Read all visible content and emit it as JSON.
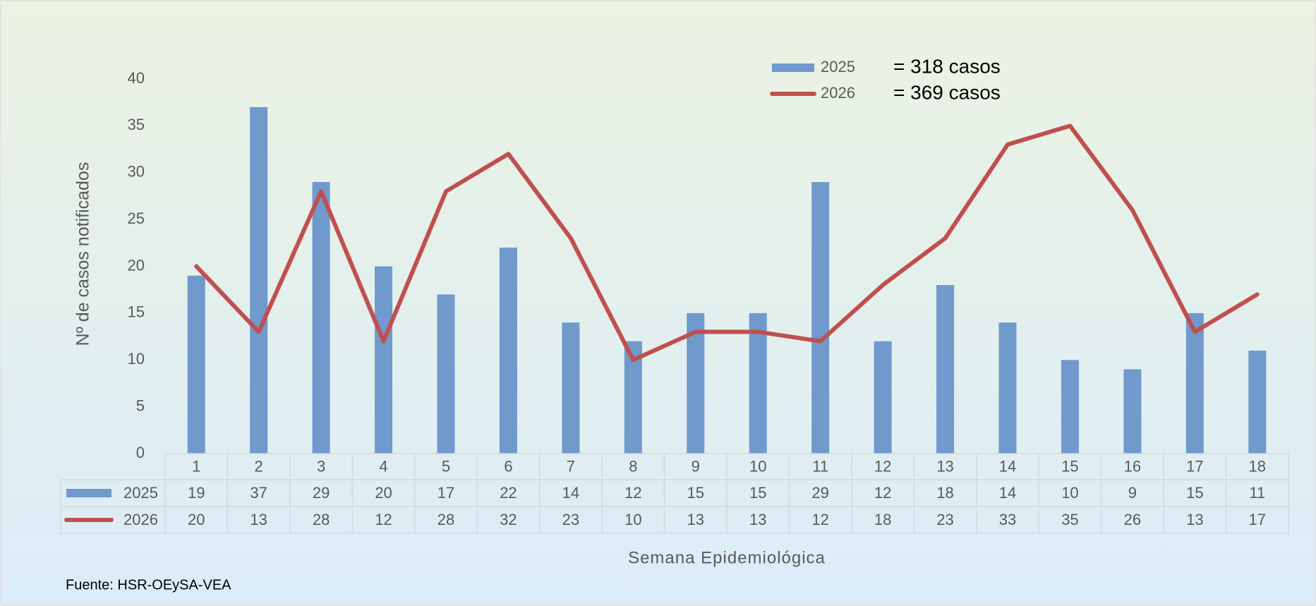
{
  "chart_data": {
    "type": "bar",
    "y_label": "Nº de casos notificados",
    "x_label": "Semana Epidemiológica",
    "source": "Fuente: HSR-OEySA-VEA",
    "categories": [
      1,
      2,
      3,
      4,
      5,
      6,
      7,
      8,
      9,
      10,
      11,
      12,
      13,
      14,
      15,
      16,
      17,
      18
    ],
    "series": [
      {
        "name": "2025",
        "type": "bar",
        "color": "#7099cc",
        "total_label": "= 318 casos",
        "values": [
          19,
          37,
          29,
          20,
          17,
          22,
          14,
          12,
          15,
          15,
          29,
          12,
          18,
          14,
          10,
          9,
          15,
          11
        ]
      },
      {
        "name": "2026",
        "type": "line",
        "color": "#c0504d",
        "total_label": "= 369 casos",
        "values": [
          20,
          13,
          28,
          12,
          28,
          32,
          23,
          10,
          13,
          13,
          12,
          18,
          23,
          33,
          35,
          26,
          13,
          17
        ]
      }
    ],
    "ylim": [
      0,
      40
    ],
    "yticks": [
      0,
      5,
      10,
      15,
      20,
      25,
      30,
      35,
      40
    ],
    "grid": false,
    "data_table": true
  }
}
